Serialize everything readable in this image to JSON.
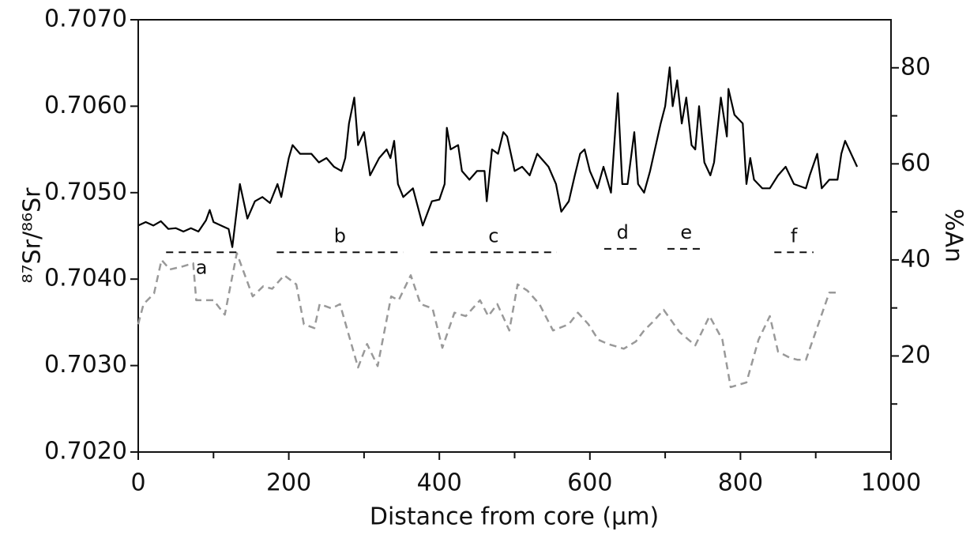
{
  "chart_data": {
    "type": "line",
    "xlabel": "Distance from core (μm)",
    "ylabel": "⁸⁷Sr/⁸⁶Sr",
    "y2label": "%An",
    "xlim": [
      0,
      1000
    ],
    "xticks": [
      0,
      200,
      400,
      600,
      800,
      1000
    ],
    "xminor_ticks": [
      100,
      300,
      500,
      700,
      900
    ],
    "ylim": [
      0.702,
      0.707
    ],
    "yticks": [
      {
        "value": 0.702,
        "label": "0.7020"
      },
      {
        "value": 0.703,
        "label": "0.7030"
      },
      {
        "value": 0.704,
        "label": "0.7040"
      },
      {
        "value": 0.705,
        "label": "0.7050"
      },
      {
        "value": 0.706,
        "label": "0.7060"
      },
      {
        "value": 0.707,
        "label": "0.7070"
      }
    ],
    "y2lim": [
      0,
      90
    ],
    "y2ticks": [
      20,
      40,
      60,
      80
    ],
    "y2minor_ticks": [
      10,
      30,
      50,
      70
    ],
    "series": [
      {
        "name": "⁸⁷Sr/⁸⁶Sr",
        "color": "#000000",
        "style": "solid",
        "x": [
          0,
          10,
          20,
          30,
          40,
          50,
          60,
          70,
          80,
          90,
          95,
          100,
          110,
          120,
          125,
          135,
          145,
          155,
          165,
          175,
          185,
          190,
          200,
          205,
          215,
          230,
          240,
          250,
          260,
          270,
          275,
          280,
          287,
          292,
          300,
          308,
          320,
          330,
          335,
          340,
          345,
          352,
          365,
          378,
          390,
          400,
          407,
          410,
          415,
          425,
          430,
          440,
          450,
          460,
          463,
          470,
          478,
          485,
          490,
          500,
          510,
          520,
          530,
          540,
          545,
          555,
          562,
          572,
          580,
          587,
          593,
          600,
          610,
          618,
          628,
          637,
          643,
          650,
          659,
          664,
          672,
          680,
          694,
          700,
          706,
          710,
          716,
          722,
          728,
          735,
          740,
          745,
          752,
          760,
          765,
          774,
          782,
          784,
          792,
          803,
          808,
          813,
          818,
          829,
          839,
          850,
          860,
          871,
          887,
          892,
          902,
          908,
          918,
          929,
          934,
          939,
          955
        ],
        "values": [
          0.70462,
          0.70466,
          0.70462,
          0.70467,
          0.70458,
          0.70459,
          0.70455,
          0.70459,
          0.70455,
          0.70468,
          0.7048,
          0.70466,
          0.70462,
          0.70458,
          0.70437,
          0.7051,
          0.7047,
          0.7049,
          0.70495,
          0.70488,
          0.7051,
          0.70495,
          0.7054,
          0.70555,
          0.70545,
          0.70545,
          0.70535,
          0.7054,
          0.7053,
          0.70525,
          0.7054,
          0.7058,
          0.7061,
          0.70555,
          0.7057,
          0.7052,
          0.7054,
          0.7055,
          0.7054,
          0.7056,
          0.7051,
          0.70495,
          0.70505,
          0.70462,
          0.7049,
          0.70492,
          0.7051,
          0.70575,
          0.7055,
          0.70555,
          0.70525,
          0.70515,
          0.70525,
          0.70525,
          0.7049,
          0.7055,
          0.70545,
          0.7057,
          0.70565,
          0.70525,
          0.7053,
          0.7052,
          0.70545,
          0.70535,
          0.7053,
          0.7051,
          0.70478,
          0.7049,
          0.7052,
          0.70545,
          0.7055,
          0.70525,
          0.70505,
          0.7053,
          0.705,
          0.70615,
          0.7051,
          0.7051,
          0.7057,
          0.7051,
          0.705,
          0.70525,
          0.7058,
          0.706,
          0.70645,
          0.706,
          0.7063,
          0.7058,
          0.7061,
          0.70555,
          0.7055,
          0.706,
          0.70535,
          0.7052,
          0.70535,
          0.7061,
          0.70565,
          0.7062,
          0.7059,
          0.7058,
          0.7051,
          0.7054,
          0.70515,
          0.70505,
          0.70505,
          0.7052,
          0.7053,
          0.7051,
          0.70505,
          0.7052,
          0.70545,
          0.70505,
          0.70515,
          0.70515,
          0.70545,
          0.7056,
          0.7053
        ]
      },
      {
        "name": "%An",
        "color": "#999999",
        "style": "dashed",
        "axis": "y2",
        "x": [
          0,
          7,
          21,
          31,
          42,
          58,
          73,
          77,
          100,
          115,
          131,
          152,
          166,
          178,
          194,
          210,
          220,
          234,
          241,
          257,
          268,
          292,
          304,
          318,
          336,
          346,
          362,
          375,
          391,
          404,
          420,
          435,
          454,
          465,
          477,
          493,
          504,
          517,
          533,
          551,
          572,
          584,
          598,
          611,
          624,
          645,
          661,
          672,
          683,
          698,
          719,
          740,
          759,
          776,
          787,
          808,
          824,
          839,
          850,
          866,
          876,
          887,
          918,
          929
        ],
        "values": [
          26.6,
          30.8,
          33,
          40,
          38,
          38.6,
          39.3,
          31.6,
          31.6,
          28.6,
          41.4,
          32.4,
          34.5,
          34,
          36.8,
          34.9,
          26.6,
          25.8,
          30.8,
          29.9,
          30.8,
          17.6,
          22.5,
          17.9,
          32.4,
          31.6,
          36.8,
          30.8,
          29.9,
          21.7,
          29,
          28.3,
          31.6,
          28.3,
          30.8,
          25.3,
          34.9,
          33.6,
          30.8,
          25.3,
          26.6,
          29,
          26.6,
          23.4,
          22.5,
          21.5,
          23,
          25.3,
          27,
          29.6,
          25,
          22.2,
          28.3,
          23.4,
          13.5,
          14.5,
          23.4,
          28.3,
          20.9,
          19.6,
          19.2,
          19.2,
          33.2,
          33.2
        ]
      }
    ],
    "annotations": [
      {
        "label": "a",
        "x": [
          37,
          131
        ],
        "y": 0.70431,
        "label_position": "below"
      },
      {
        "label": "b",
        "x": [
          184,
          352
        ],
        "y": 0.70431,
        "label_position": "above"
      },
      {
        "label": "c",
        "x": [
          388,
          556
        ],
        "y": 0.70431,
        "label_position": "above"
      },
      {
        "label": "d",
        "x": [
          619,
          668
        ],
        "y": 0.70435,
        "label_position": "above"
      },
      {
        "label": "e",
        "x": [
          703,
          753
        ],
        "y": 0.70435,
        "label_position": "above"
      },
      {
        "label": "f",
        "x": [
          845,
          897
        ],
        "y": 0.70431,
        "label_position": "above"
      }
    ]
  }
}
